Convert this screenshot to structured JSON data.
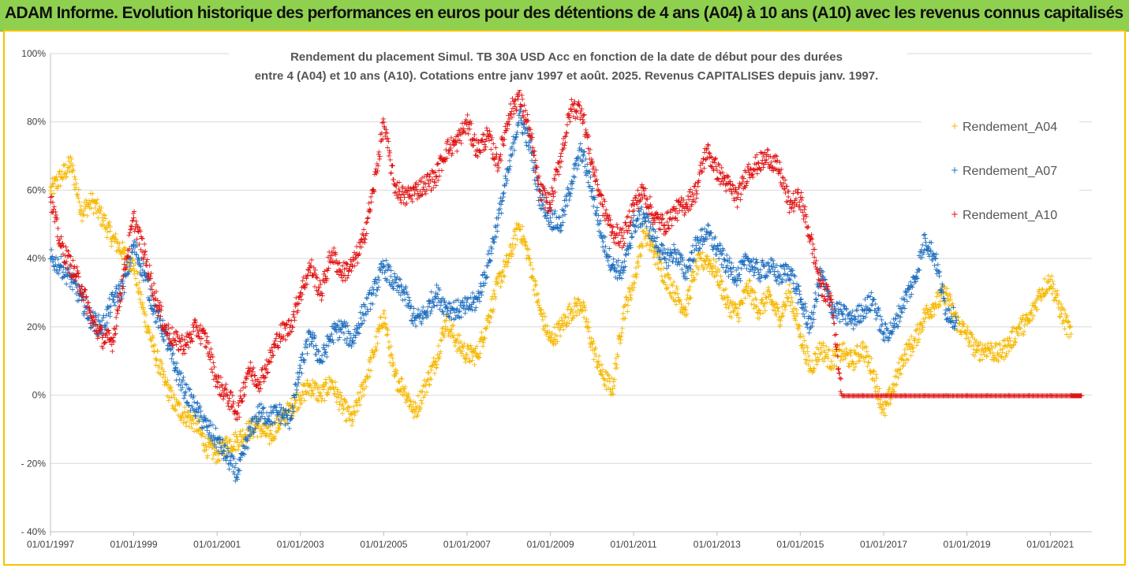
{
  "banner": {
    "text": "ADAM Informe. Evolution historique des performances en euros pour des détentions de 4 ans (A04) à 10 ans (A10) avec les revenus connus capitalisés"
  },
  "colors": {
    "banner_bg": "#8fd14f",
    "frame_border": "#f5c400",
    "A04": "#f5b800",
    "A07": "#1f6fbf",
    "A10": "#e01010"
  },
  "chart_data": {
    "type": "scatter",
    "marker": "plus",
    "title": [
      "Rendement du placement Simul. TB 30A USD Acc en fonction de la date de début pour des durées",
      "entre 4 (A04) et 10 ans (A10). Cotations entre janv 1997 et août. 2025. Revenus CAPITALISES depuis janv. 1997."
    ],
    "xlabel": "",
    "ylabel": "",
    "x_type": "date",
    "xlim": [
      "1997-01-01",
      "2022-01-01"
    ],
    "ylim": [
      -40,
      100
    ],
    "y_unit": "%",
    "y_ticks": [
      100,
      80,
      60,
      40,
      20,
      0,
      -20,
      -40
    ],
    "y_tick_labels": [
      "100%",
      "80%",
      "60%",
      "40%",
      "20%",
      "0%",
      "- 20%",
      "- 40%"
    ],
    "x_ticks": [
      "1997-01-01",
      "1999-01-01",
      "2001-01-01",
      "2003-01-01",
      "2005-01-01",
      "2007-01-01",
      "2009-01-01",
      "2011-01-01",
      "2013-01-01",
      "2015-01-01",
      "2017-01-01",
      "2019-01-01",
      "2021-01-01"
    ],
    "x_tick_labels": [
      "01/01/1997",
      "01/01/1999",
      "01/01/2001",
      "01/01/2003",
      "01/01/2005",
      "01/01/2007",
      "01/01/2009",
      "01/01/2011",
      "01/01/2013",
      "01/01/2015",
      "01/01/2017",
      "01/01/2019",
      "01/01/2021"
    ],
    "grid": "horizontal",
    "legend": "right",
    "series": [
      {
        "name": "Rendement_A04",
        "color": "#f5b800",
        "points": [
          [
            "1997-01",
            60
          ],
          [
            "1997-04",
            64
          ],
          [
            "1997-07",
            68
          ],
          [
            "1997-10",
            54
          ],
          [
            "1998-01",
            57
          ],
          [
            "1998-04",
            52
          ],
          [
            "1998-07",
            46
          ],
          [
            "1998-10",
            42
          ],
          [
            "1999-01",
            38
          ],
          [
            "1999-04",
            24
          ],
          [
            "1999-07",
            13
          ],
          [
            "1999-10",
            4
          ],
          [
            "2000-01",
            -3
          ],
          [
            "2000-04",
            -6
          ],
          [
            "2000-07",
            -8
          ],
          [
            "2000-10",
            -15
          ],
          [
            "2001-01",
            -17
          ],
          [
            "2001-04",
            -14
          ],
          [
            "2001-07",
            -13
          ],
          [
            "2001-10",
            -10
          ],
          [
            "2002-01",
            -9
          ],
          [
            "2002-04",
            -12
          ],
          [
            "2002-07",
            -8
          ],
          [
            "2002-10",
            -4
          ],
          [
            "2003-01",
            0
          ],
          [
            "2003-04",
            3
          ],
          [
            "2003-07",
            0
          ],
          [
            "2003-10",
            4
          ],
          [
            "2004-01",
            -3
          ],
          [
            "2004-04",
            -7
          ],
          [
            "2004-07",
            2
          ],
          [
            "2004-10",
            12
          ],
          [
            "2005-01",
            24
          ],
          [
            "2005-04",
            6
          ],
          [
            "2005-07",
            2
          ],
          [
            "2005-10",
            -5
          ],
          [
            "2006-01",
            3
          ],
          [
            "2006-04",
            10
          ],
          [
            "2006-07",
            22
          ],
          [
            "2006-10",
            16
          ],
          [
            "2007-01",
            12
          ],
          [
            "2007-04",
            12
          ],
          [
            "2007-07",
            22
          ],
          [
            "2007-10",
            33
          ],
          [
            "2008-01",
            40
          ],
          [
            "2008-04",
            50
          ],
          [
            "2008-07",
            40
          ],
          [
            "2008-10",
            25
          ],
          [
            "2009-01",
            16
          ],
          [
            "2009-04",
            20
          ],
          [
            "2009-07",
            25
          ],
          [
            "2009-10",
            27
          ],
          [
            "2010-01",
            15
          ],
          [
            "2010-04",
            6
          ],
          [
            "2010-07",
            2
          ],
          [
            "2010-10",
            24
          ],
          [
            "2011-01",
            33
          ],
          [
            "2011-04",
            48
          ],
          [
            "2011-07",
            42
          ],
          [
            "2011-10",
            35
          ],
          [
            "2012-01",
            30
          ],
          [
            "2012-04",
            25
          ],
          [
            "2012-07",
            38
          ],
          [
            "2012-10",
            40
          ],
          [
            "2013-01",
            36
          ],
          [
            "2013-04",
            27
          ],
          [
            "2013-07",
            24
          ],
          [
            "2013-10",
            32
          ],
          [
            "2014-01",
            25
          ],
          [
            "2014-04",
            29
          ],
          [
            "2014-07",
            23
          ],
          [
            "2014-10",
            30
          ],
          [
            "2015-01",
            18
          ],
          [
            "2015-04",
            8
          ],
          [
            "2015-07",
            14
          ],
          [
            "2015-10",
            10
          ],
          [
            "2016-01",
            13
          ],
          [
            "2016-04",
            10
          ],
          [
            "2016-07",
            14
          ],
          [
            "2016-10",
            7
          ],
          [
            "2017-01",
            -5
          ],
          [
            "2017-04",
            3
          ],
          [
            "2017-07",
            12
          ],
          [
            "2017-10",
            16
          ],
          [
            "2018-01",
            24
          ],
          [
            "2018-04",
            27
          ],
          [
            "2018-07",
            30
          ],
          [
            "2018-10",
            22
          ],
          [
            "2019-01",
            18
          ],
          [
            "2019-04",
            13
          ],
          [
            "2019-07",
            14
          ],
          [
            "2019-10",
            12
          ],
          [
            "2020-01",
            15
          ],
          [
            "2020-04",
            20
          ],
          [
            "2020-07",
            22
          ],
          [
            "2020-10",
            30
          ],
          [
            "2021-01",
            34
          ],
          [
            "2021-04",
            25
          ],
          [
            "2021-07",
            18
          ]
        ]
      },
      {
        "name": "Rendement_A07",
        "color": "#1f6fbf",
        "points": [
          [
            "1997-01",
            40
          ],
          [
            "1997-04",
            38
          ],
          [
            "1997-07",
            34
          ],
          [
            "1997-10",
            28
          ],
          [
            "1998-01",
            22
          ],
          [
            "1998-04",
            20
          ],
          [
            "1998-07",
            28
          ],
          [
            "1998-10",
            32
          ],
          [
            "1999-01",
            44
          ],
          [
            "1999-04",
            36
          ],
          [
            "1999-07",
            25
          ],
          [
            "1999-10",
            18
          ],
          [
            "2000-01",
            8
          ],
          [
            "2000-04",
            1
          ],
          [
            "2000-07",
            -4
          ],
          [
            "2000-10",
            -9
          ],
          [
            "2001-01",
            -13
          ],
          [
            "2001-04",
            -18
          ],
          [
            "2001-07",
            -23
          ],
          [
            "2001-10",
            -12
          ],
          [
            "2002-01",
            -5
          ],
          [
            "2002-04",
            -6
          ],
          [
            "2002-07",
            -5
          ],
          [
            "2002-10",
            -7
          ],
          [
            "2003-01",
            8
          ],
          [
            "2003-04",
            18
          ],
          [
            "2003-07",
            10
          ],
          [
            "2003-10",
            18
          ],
          [
            "2004-01",
            20
          ],
          [
            "2004-04",
            16
          ],
          [
            "2004-07",
            24
          ],
          [
            "2004-10",
            30
          ],
          [
            "2005-01",
            38
          ],
          [
            "2005-04",
            33
          ],
          [
            "2005-07",
            30
          ],
          [
            "2005-10",
            22
          ],
          [
            "2006-01",
            24
          ],
          [
            "2006-04",
            30
          ],
          [
            "2006-07",
            26
          ],
          [
            "2006-10",
            25
          ],
          [
            "2007-01",
            26
          ],
          [
            "2007-04",
            28
          ],
          [
            "2007-07",
            38
          ],
          [
            "2007-10",
            52
          ],
          [
            "2008-01",
            66
          ],
          [
            "2008-04",
            82
          ],
          [
            "2008-07",
            74
          ],
          [
            "2008-10",
            58
          ],
          [
            "2009-01",
            52
          ],
          [
            "2009-04",
            50
          ],
          [
            "2009-07",
            62
          ],
          [
            "2009-10",
            72
          ],
          [
            "2010-01",
            60
          ],
          [
            "2010-04",
            46
          ],
          [
            "2010-07",
            38
          ],
          [
            "2010-10",
            36
          ],
          [
            "2011-01",
            50
          ],
          [
            "2011-04",
            53
          ],
          [
            "2011-07",
            46
          ],
          [
            "2011-10",
            40
          ],
          [
            "2012-01",
            42
          ],
          [
            "2012-04",
            36
          ],
          [
            "2012-07",
            44
          ],
          [
            "2012-10",
            48
          ],
          [
            "2013-01",
            43
          ],
          [
            "2013-04",
            38
          ],
          [
            "2013-07",
            35
          ],
          [
            "2013-10",
            40
          ],
          [
            "2014-01",
            36
          ],
          [
            "2014-04",
            38
          ],
          [
            "2014-07",
            35
          ],
          [
            "2014-10",
            37
          ],
          [
            "2015-01",
            28
          ],
          [
            "2015-04",
            20
          ],
          [
            "2015-07",
            36
          ],
          [
            "2015-10",
            26
          ],
          [
            "2016-01",
            24
          ],
          [
            "2016-04",
            22
          ],
          [
            "2016-07",
            25
          ],
          [
            "2016-10",
            28
          ],
          [
            "2017-01",
            18
          ],
          [
            "2017-04",
            20
          ],
          [
            "2017-07",
            28
          ],
          [
            "2017-10",
            34
          ],
          [
            "2018-01",
            46
          ],
          [
            "2018-04",
            40
          ],
          [
            "2018-07",
            25
          ],
          [
            "2018-10",
            22
          ]
        ]
      },
      {
        "name": "Rendement_A10",
        "color": "#e01010",
        "points": [
          [
            "1997-01",
            58
          ],
          [
            "1997-04",
            44
          ],
          [
            "1997-07",
            38
          ],
          [
            "1997-10",
            32
          ],
          [
            "1998-01",
            22
          ],
          [
            "1998-04",
            17
          ],
          [
            "1998-07",
            16
          ],
          [
            "1998-10",
            35
          ],
          [
            "1999-01",
            52
          ],
          [
            "1999-04",
            42
          ],
          [
            "1999-07",
            30
          ],
          [
            "1999-10",
            20
          ],
          [
            "2000-01",
            16
          ],
          [
            "2000-04",
            15
          ],
          [
            "2000-07",
            20
          ],
          [
            "2000-10",
            16
          ],
          [
            "2001-01",
            4
          ],
          [
            "2001-04",
            0
          ],
          [
            "2001-07",
            -5
          ],
          [
            "2001-10",
            8
          ],
          [
            "2002-01",
            4
          ],
          [
            "2002-04",
            10
          ],
          [
            "2002-07",
            18
          ],
          [
            "2002-10",
            20
          ],
          [
            "2003-01",
            30
          ],
          [
            "2003-04",
            38
          ],
          [
            "2003-07",
            30
          ],
          [
            "2003-10",
            42
          ],
          [
            "2004-01",
            36
          ],
          [
            "2004-04",
            38
          ],
          [
            "2004-07",
            45
          ],
          [
            "2004-10",
            60
          ],
          [
            "2005-01",
            80
          ],
          [
            "2005-04",
            62
          ],
          [
            "2005-07",
            58
          ],
          [
            "2005-10",
            60
          ],
          [
            "2006-01",
            62
          ],
          [
            "2006-04",
            64
          ],
          [
            "2006-07",
            72
          ],
          [
            "2006-10",
            74
          ],
          [
            "2007-01",
            80
          ],
          [
            "2007-04",
            72
          ],
          [
            "2007-07",
            76
          ],
          [
            "2007-10",
            68
          ],
          [
            "2008-01",
            82
          ],
          [
            "2008-04",
            88
          ],
          [
            "2008-07",
            78
          ],
          [
            "2008-10",
            60
          ],
          [
            "2009-01",
            56
          ],
          [
            "2009-04",
            70
          ],
          [
            "2009-07",
            84
          ],
          [
            "2009-10",
            84
          ],
          [
            "2010-01",
            68
          ],
          [
            "2010-04",
            56
          ],
          [
            "2010-07",
            48
          ],
          [
            "2010-10",
            46
          ],
          [
            "2011-01",
            56
          ],
          [
            "2011-04",
            60
          ],
          [
            "2011-07",
            52
          ],
          [
            "2011-10",
            50
          ],
          [
            "2012-01",
            54
          ],
          [
            "2012-04",
            56
          ],
          [
            "2012-07",
            60
          ],
          [
            "2012-10",
            72
          ],
          [
            "2013-01",
            66
          ],
          [
            "2013-04",
            62
          ],
          [
            "2013-07",
            58
          ],
          [
            "2013-10",
            66
          ],
          [
            "2014-01",
            68
          ],
          [
            "2014-04",
            70
          ],
          [
            "2014-07",
            66
          ],
          [
            "2014-10",
            56
          ],
          [
            "2015-01",
            58
          ],
          [
            "2015-04",
            46
          ],
          [
            "2015-07",
            32
          ],
          [
            "2015-10",
            28
          ],
          [
            "2016-01",
            0
          ],
          [
            "2016-07",
            0
          ],
          [
            "2017-01",
            0
          ],
          [
            "2017-07",
            0
          ],
          [
            "2018-01",
            0
          ],
          [
            "2018-07",
            0
          ],
          [
            "2019-01",
            0
          ],
          [
            "2019-07",
            0
          ],
          [
            "2020-01",
            0
          ],
          [
            "2020-07",
            0
          ],
          [
            "2021-01",
            0
          ],
          [
            "2021-07",
            0
          ],
          [
            "2021-10",
            0
          ]
        ]
      }
    ]
  }
}
